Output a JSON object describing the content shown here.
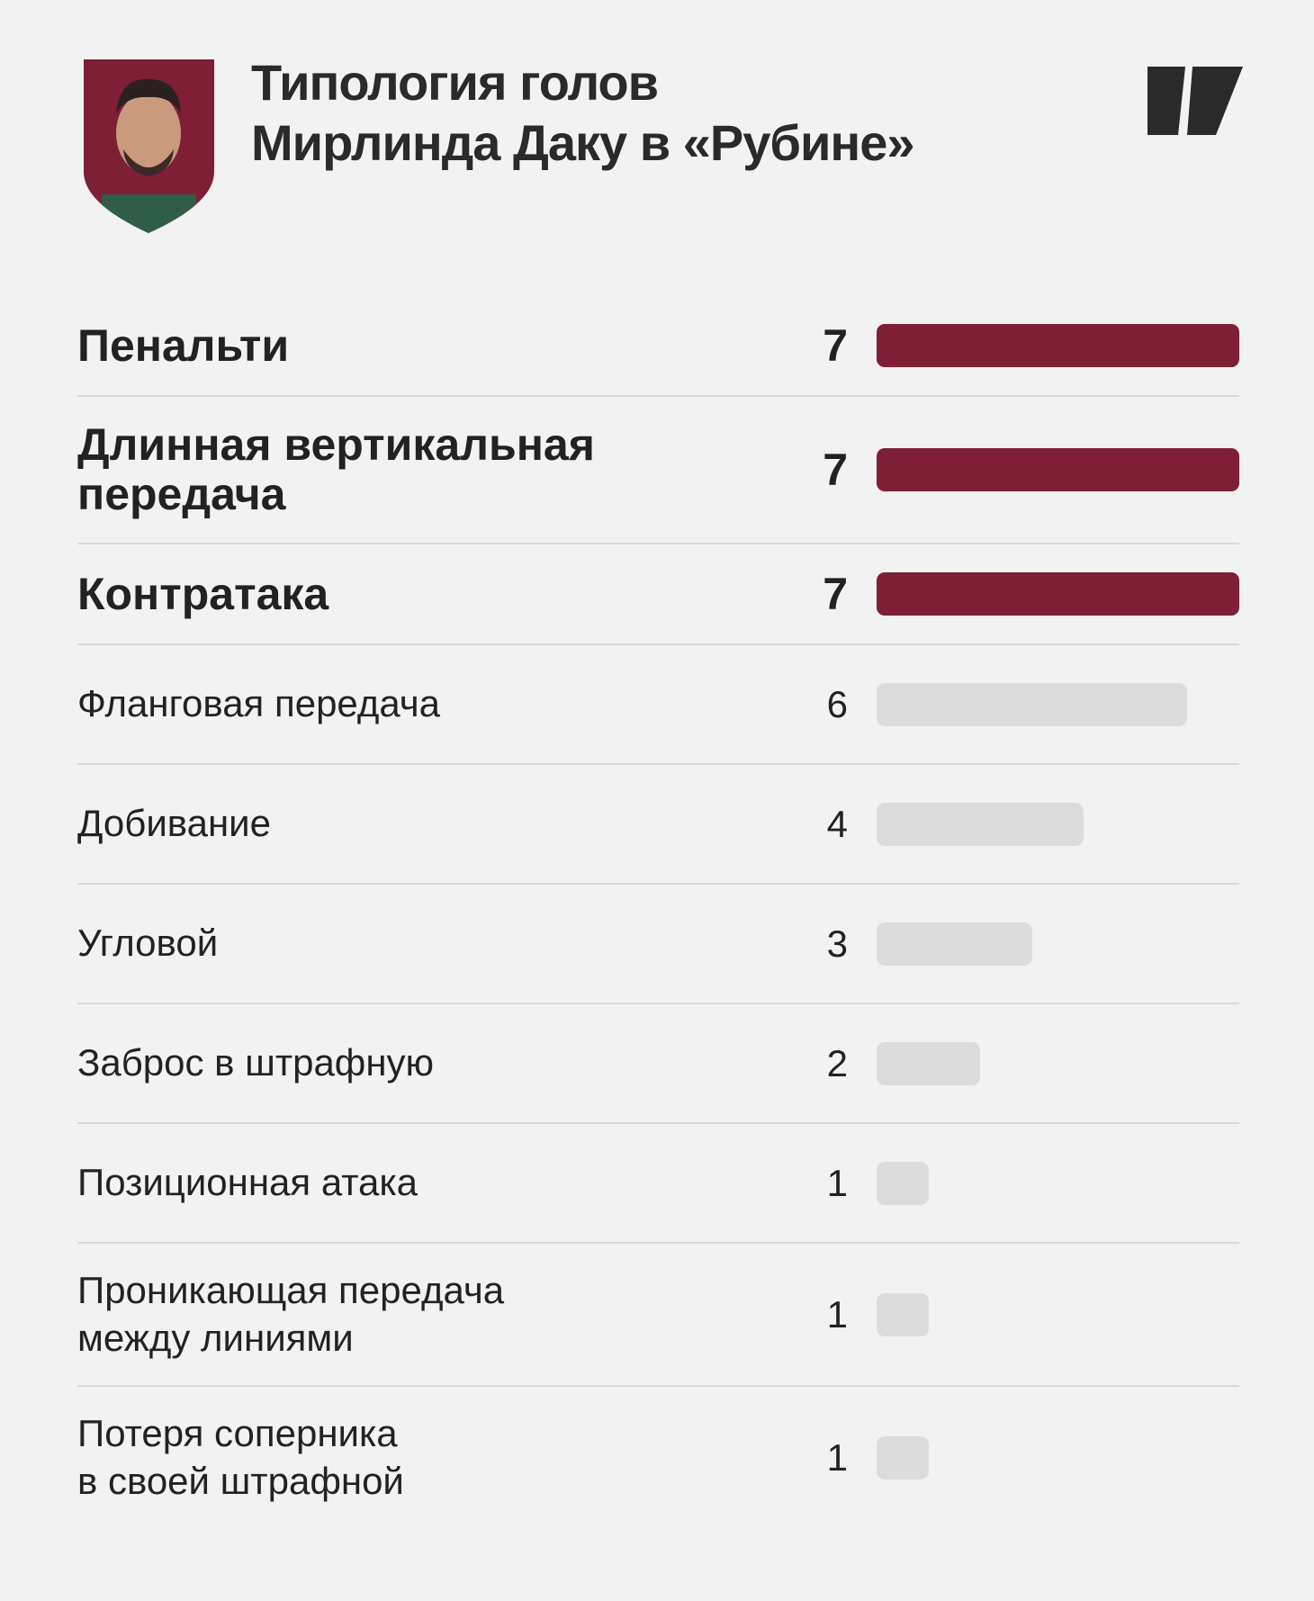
{
  "chart_data": {
    "type": "hbar",
    "title": "Типология голов\nМирлинда Даку в «Рубине»",
    "categories": [
      "Пенальти",
      "Длинная вертикальная\nпередача",
      "Контратака",
      "Фланговая передача",
      "Добивание",
      "Угловой",
      "Заброс в штрафную",
      "Позиционная атака",
      "Проникающая передача\nмежду линиями",
      "Потеря соперника\nв своей штрафной"
    ],
    "values": [
      7,
      7,
      7,
      6,
      4,
      3,
      2,
      1,
      1,
      1
    ],
    "colors": [
      "#7f1f35",
      "#7f1f35",
      "#7f1f35",
      "#dcdcdc",
      "#dcdcdc",
      "#dcdcdc",
      "#dcdcdc",
      "#dcdcdc",
      "#dcdcdc",
      "#dcdcdc"
    ]
  }
}
